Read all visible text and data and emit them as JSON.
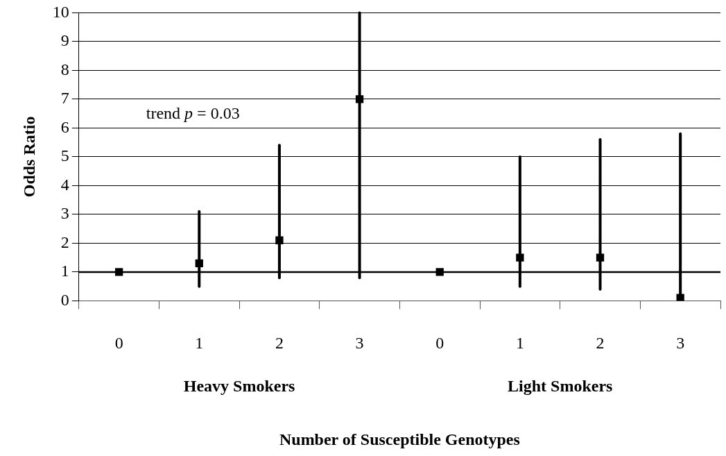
{
  "chart_data": {
    "type": "scatter",
    "xlabel": "Number of Susceptible Genotypes",
    "ylabel": "Odds Ratio",
    "categories": [
      "0",
      "1",
      "2",
      "3",
      "0",
      "1",
      "2",
      "3"
    ],
    "values": [
      1,
      1.3,
      2.1,
      7,
      1,
      1.5,
      1.5,
      0.1
    ],
    "errors": [
      null,
      [
        0.5,
        3.1
      ],
      [
        0.8,
        5.4
      ],
      [
        0.8,
        10
      ],
      null,
      [
        0.5,
        5
      ],
      [
        0.4,
        5.6
      ],
      [
        0.1,
        5.8
      ]
    ],
    "color": "#000000",
    "marker": "square",
    "ylim": [
      0,
      10
    ],
    "yticks": [
      0,
      1,
      2,
      3,
      4,
      5,
      6,
      7,
      8,
      9,
      10
    ],
    "grid": "y",
    "legend": false,
    "ref_lines": [
      {
        "axis": "y",
        "value": 1
      }
    ],
    "annotations": [
      "trend p = 0.03",
      "Heavy Smokers",
      "Light Smokers"
    ]
  }
}
